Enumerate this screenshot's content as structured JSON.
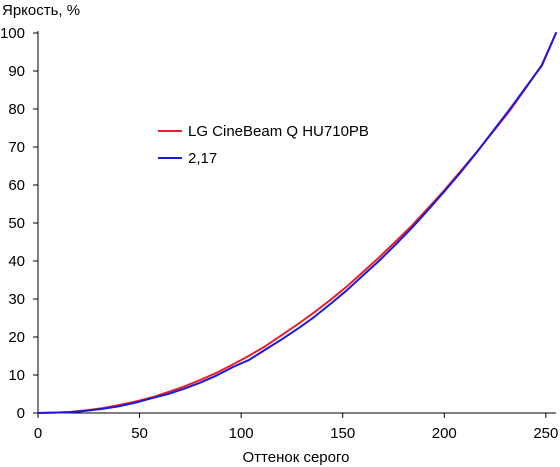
{
  "chart_data": {
    "type": "line",
    "title": "",
    "xlabel": "Оттенок серого",
    "ylabel": "Яркость, %",
    "xlim": [
      0,
      255
    ],
    "ylim": [
      0,
      100
    ],
    "x_ticks": [
      0,
      50,
      100,
      150,
      200,
      250
    ],
    "y_ticks": [
      0,
      10,
      20,
      30,
      40,
      50,
      60,
      70,
      80,
      90,
      100
    ],
    "grid": false,
    "legend_position": "center-left",
    "series": [
      {
        "name": "LG CineBeam Q HU710PB",
        "color": "#e8202a",
        "x": [
          0,
          8,
          16,
          24,
          32,
          40,
          48,
          56,
          64,
          72,
          80,
          88,
          96,
          104,
          112,
          120,
          128,
          136,
          144,
          152,
          160,
          168,
          176,
          184,
          192,
          200,
          208,
          216,
          224,
          232,
          240,
          248,
          255
        ],
        "y": [
          0,
          0.1,
          0.3,
          0.7,
          1.3,
          2.1,
          3.0,
          4.1,
          5.5,
          7.0,
          8.7,
          10.6,
          12.8,
          15.1,
          17.6,
          20.5,
          23.4,
          26.5,
          29.8,
          33.3,
          37.1,
          41.0,
          45.1,
          49.3,
          53.9,
          58.6,
          63.6,
          68.7,
          74.0,
          79.4,
          85.4,
          91.6,
          100
        ]
      },
      {
        "name": "2,17",
        "color": "#1a1adc",
        "gamma": 2.17,
        "x": [
          0,
          8,
          16,
          24,
          32,
          40,
          48,
          56,
          64,
          72,
          80,
          88,
          96,
          104,
          112,
          120,
          128,
          136,
          144,
          152,
          160,
          168,
          176,
          184,
          192,
          200,
          208,
          216,
          224,
          232,
          240,
          248,
          255
        ],
        "y": [
          0,
          0.1,
          0.2,
          0.6,
          1.1,
          1.8,
          2.7,
          3.9,
          5.0,
          6.4,
          8.0,
          9.9,
          12.1,
          14.0,
          16.7,
          19.4,
          22.2,
          25.3,
          28.7,
          32.3,
          36.2,
          40.1,
          44.3,
          48.7,
          53.4,
          58.3,
          63.3,
          68.6,
          74.2,
          79.8,
          85.6,
          91.4,
          100
        ]
      }
    ]
  }
}
